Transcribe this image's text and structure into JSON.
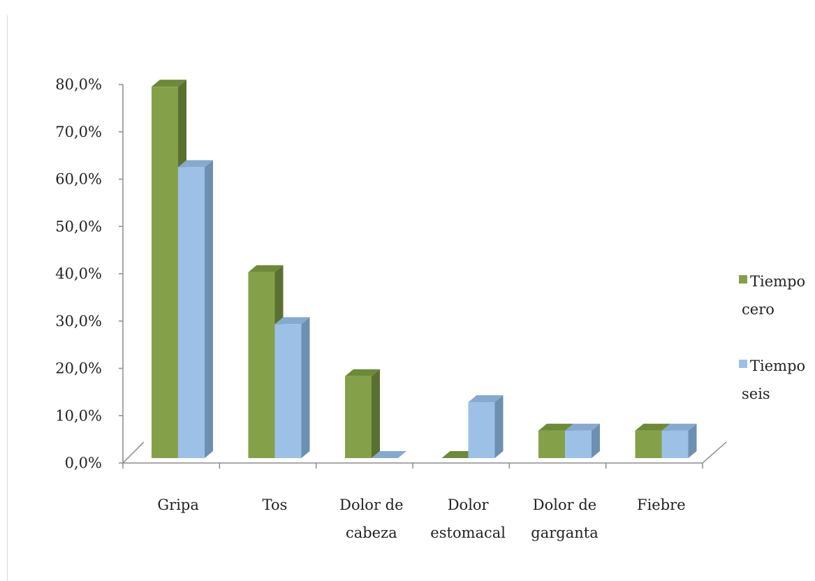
{
  "chart_data": {
    "type": "bar",
    "title": "",
    "xlabel": "",
    "ylabel": "",
    "categories": [
      [
        "Gripa"
      ],
      [
        "Tos"
      ],
      [
        "Dolor de",
        "cabeza"
      ],
      [
        "Dolor",
        "estomacal"
      ],
      [
        "Dolor de",
        "garganta"
      ],
      [
        "Fiebre"
      ]
    ],
    "series": [
      {
        "name": [
          "Tiempo",
          "cero"
        ],
        "values": [
          78.5,
          39.3,
          17.3,
          0.0,
          5.8,
          5.8
        ],
        "color": "#84a14a",
        "side_color": "#5a7030",
        "top_color": "#6d8a38"
      },
      {
        "name": [
          "Tiempo",
          "seis"
        ],
        "values": [
          61.5,
          28.3,
          0.0,
          11.8,
          5.8,
          5.8
        ],
        "color": "#9dc1e6",
        "side_color": "#6d8fb1",
        "top_color": "#86a9cf"
      }
    ],
    "yticks": [
      "0,0%",
      "10,0%",
      "20,0%",
      "30,0%",
      "40,0%",
      "50,0%",
      "60,0%",
      "70,0%",
      "80,0%"
    ],
    "ylim": [
      0,
      80
    ],
    "legend": "right",
    "grid": false
  }
}
